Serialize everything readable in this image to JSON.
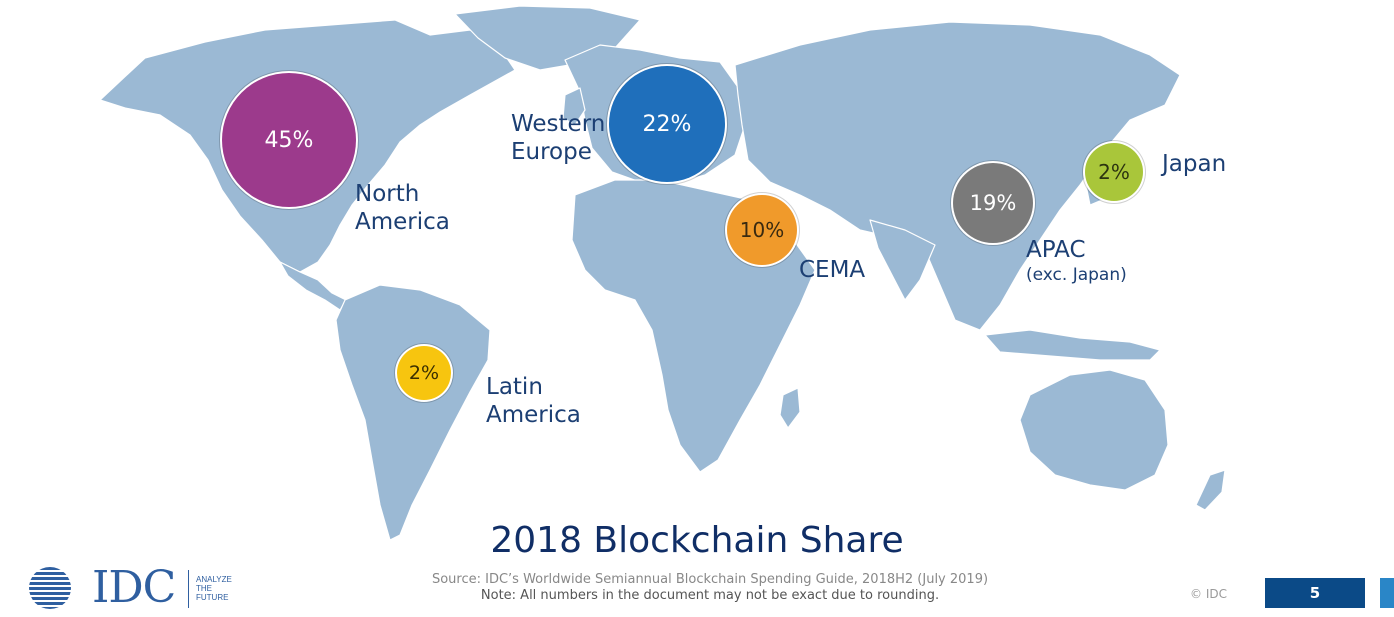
{
  "title": "2018 Blockchain Share",
  "regions": [
    {
      "key": "north-america",
      "value": "45%",
      "label_lines": [
        "North",
        "America"
      ],
      "sub": "",
      "color": "#9c3a8c"
    },
    {
      "key": "western-europe",
      "value": "22%",
      "label_lines": [
        "Western",
        "Europe"
      ],
      "sub": "",
      "color": "#1f6fbb"
    },
    {
      "key": "cema",
      "value": "10%",
      "label_lines": [
        "CEMA"
      ],
      "sub": "",
      "color": "#f09a2b"
    },
    {
      "key": "apac",
      "value": "19%",
      "label_lines": [
        "APAC"
      ],
      "sub": "(exc. Japan)",
      "color": "#7a7a7a"
    },
    {
      "key": "japan",
      "value": "2%",
      "label_lines": [
        "Japan"
      ],
      "sub": "",
      "color": "#a9c63a"
    },
    {
      "key": "latin-america",
      "value": "2%",
      "label_lines": [
        "Latin",
        "America"
      ],
      "sub": "",
      "color": "#f7c50f"
    }
  ],
  "source": "Source: IDC’s Worldwide Semiannual Blockchain Spending Guide, 2018H2 (July 2019)",
  "note": "Note: All numbers in the document may not be exact due to rounding.",
  "copyright": "© IDC",
  "page_number": "5",
  "logo": {
    "name": "IDC",
    "tagline": [
      "ANALYZE",
      "THE",
      "FUTURE"
    ]
  },
  "colors": {
    "land": "#9bb9d4",
    "title": "#102e66",
    "label": "#1c3f73",
    "page_box": "#0b4a87"
  }
}
